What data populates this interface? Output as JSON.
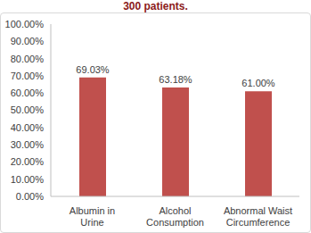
{
  "chart_data": {
    "type": "bar",
    "title": "300 patients.",
    "categories": [
      "Albumin in Urine",
      "Alcohol Consumption",
      "Abnormal Waist Circumference"
    ],
    "values": [
      69.03,
      63.18,
      61.0
    ],
    "value_labels": [
      "69.03%",
      "63.18%",
      "61.00%"
    ],
    "color": "#c0504d",
    "ylim": [
      0,
      100
    ],
    "yticks": [
      {
        "value": 0,
        "label": "0.00%"
      },
      {
        "value": 10,
        "label": "10.00%"
      },
      {
        "value": 20,
        "label": "20.00%"
      },
      {
        "value": 30,
        "label": "30.00%"
      },
      {
        "value": 40,
        "label": "40.00%"
      },
      {
        "value": 50,
        "label": "50.00%"
      },
      {
        "value": 60,
        "label": "60.00%"
      },
      {
        "value": 70,
        "label": "70.00%"
      },
      {
        "value": 80,
        "label": "80.00%"
      },
      {
        "value": 90,
        "label": "90.00%"
      },
      {
        "value": 100,
        "label": "100.00%"
      }
    ],
    "grid": false,
    "data_labels": true
  }
}
